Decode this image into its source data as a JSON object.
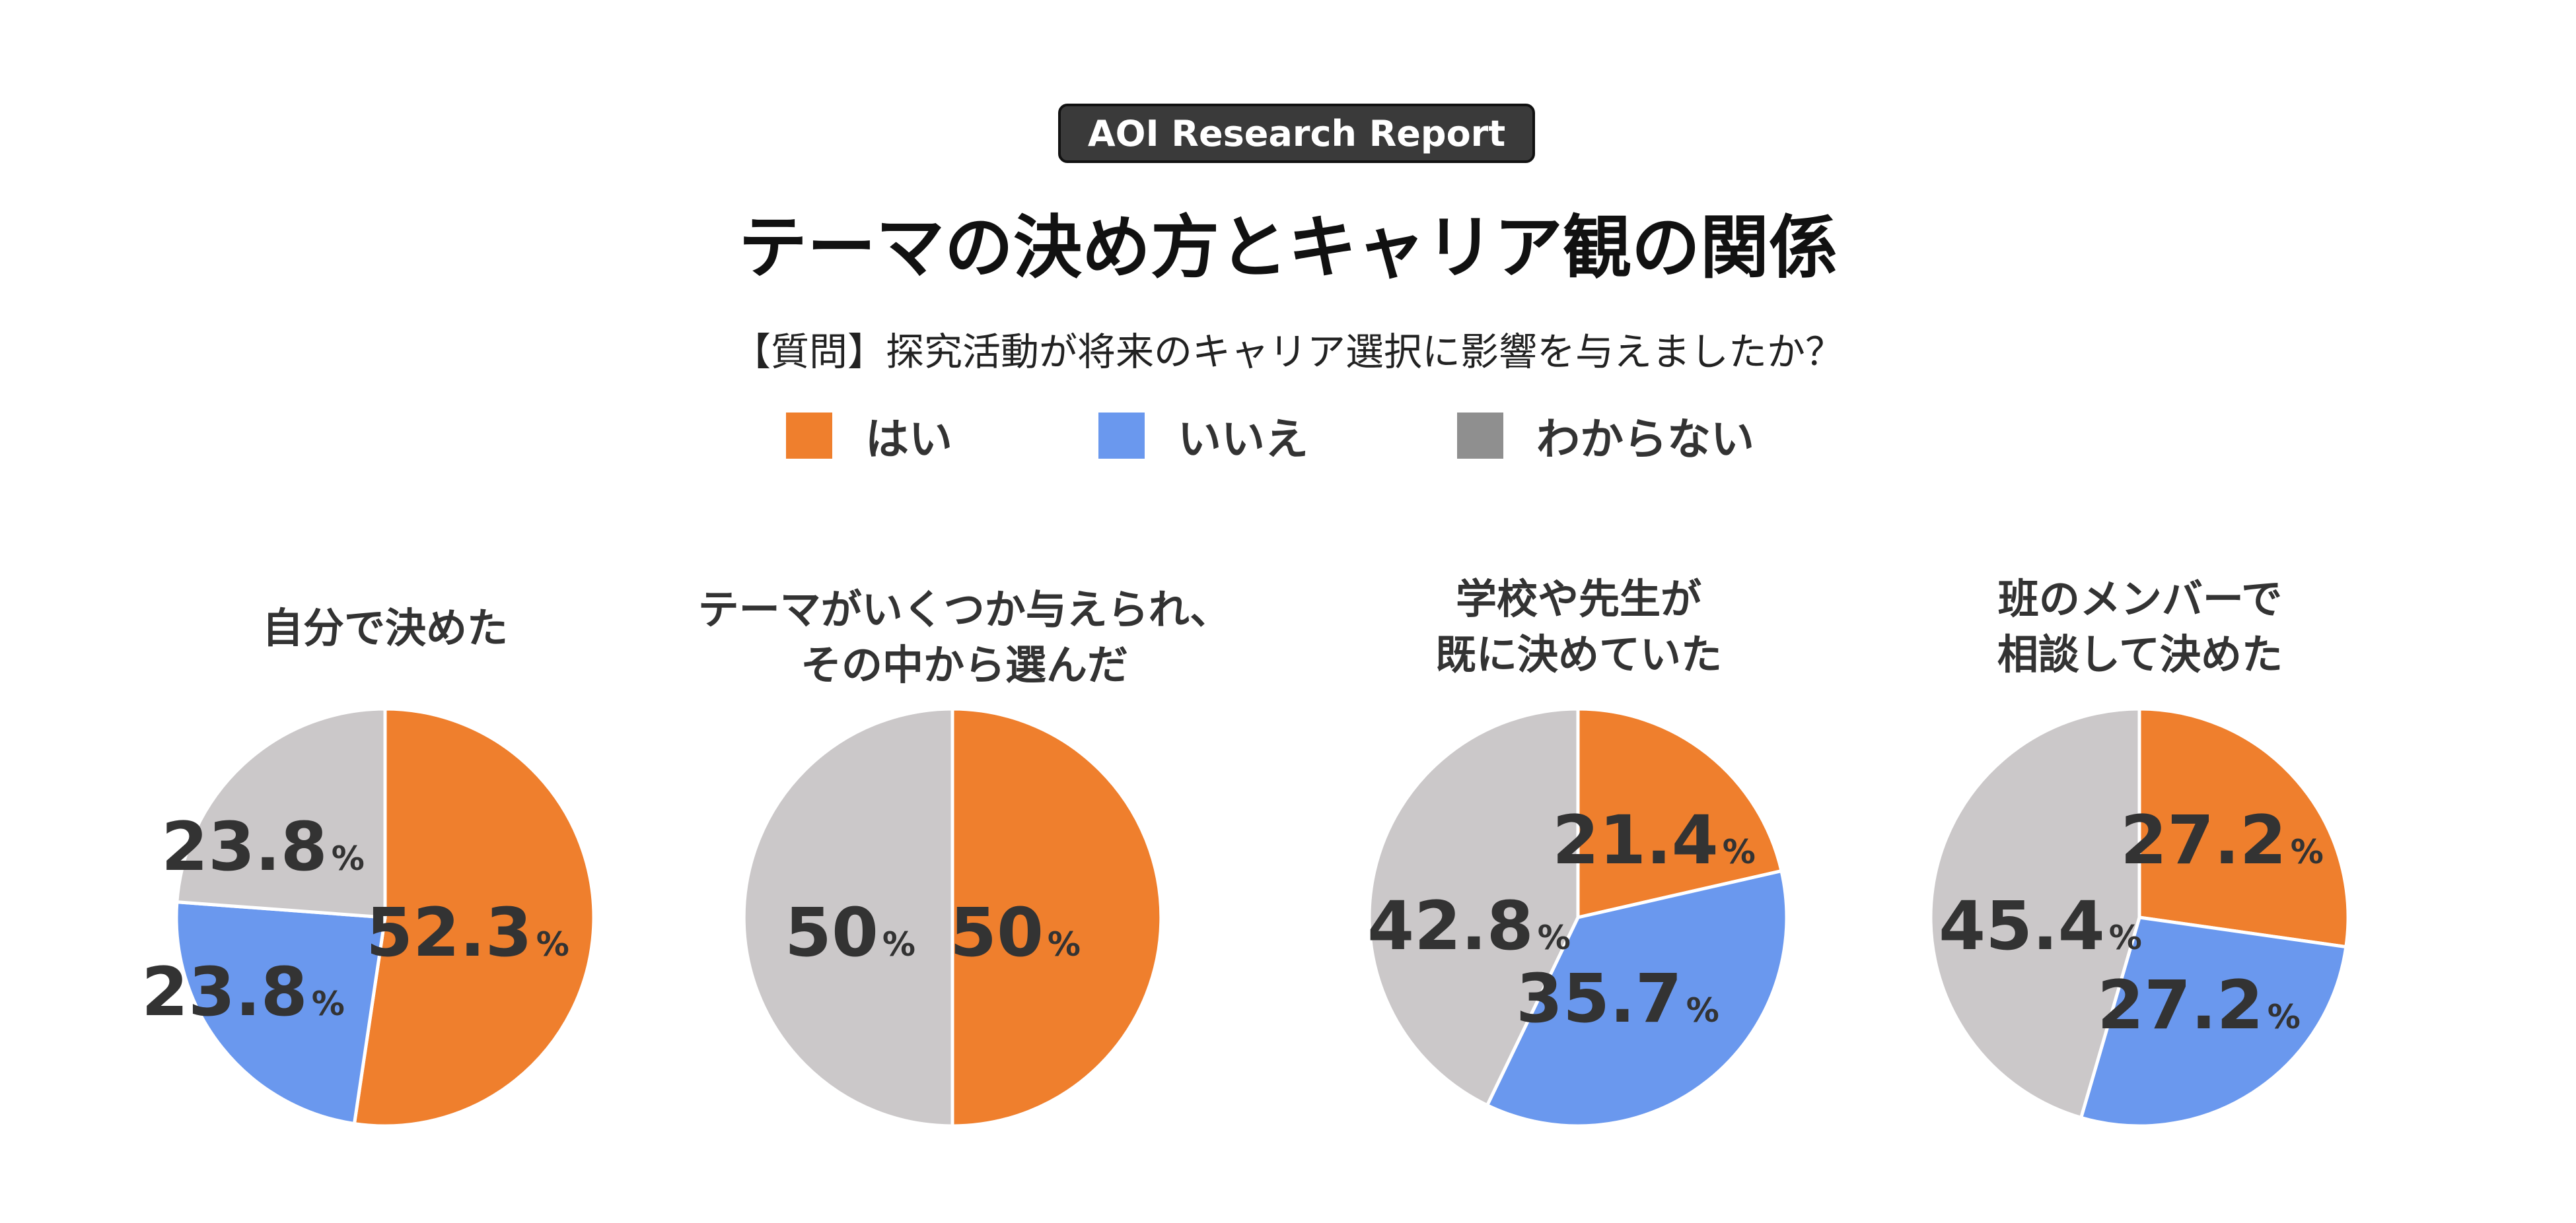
{
  "header": {
    "badge": "AOI Research Report",
    "title": "テーマの決め方とキャリア観の関係",
    "question": "【質問】探究活動が将来のキャリア選択に影響を与えましたか？"
  },
  "colors": {
    "yes": "#EF7F2D",
    "no": "#6A98EE",
    "unknown": "#CBC8C9",
    "unknown_legend": "#8F8F8F"
  },
  "legend": [
    {
      "label": "はい",
      "color": "#EF7F2D"
    },
    {
      "label": "いいえ",
      "color": "#6A98EE"
    },
    {
      "label": "わからない",
      "color": "#8F8F8F"
    }
  ],
  "chart_data": [
    {
      "type": "pie",
      "title_lines": [
        "自分で決めた"
      ],
      "categories": [
        "はい",
        "いいえ",
        "わからない"
      ],
      "values": [
        52.3,
        23.8,
        23.8
      ],
      "value_labels": [
        "52.3",
        "23.8",
        "23.8"
      ],
      "unit": "%"
    },
    {
      "type": "pie",
      "title_lines": [
        "テーマがいくつか与えられ、",
        "その中から選んだ"
      ],
      "categories": [
        "はい",
        "いいえ",
        "わからない"
      ],
      "values": [
        50,
        0,
        50
      ],
      "value_labels": [
        "50",
        "",
        "50"
      ],
      "unit": "%"
    },
    {
      "type": "pie",
      "title_lines": [
        "学校や先生が",
        "既に決めていた"
      ],
      "categories": [
        "はい",
        "いいえ",
        "わからない"
      ],
      "values": [
        21.4,
        35.7,
        42.8
      ],
      "value_labels": [
        "21.4",
        "35.7",
        "42.8"
      ],
      "unit": "%"
    },
    {
      "type": "pie",
      "title_lines": [
        "班のメンバーで",
        "相談して決めた"
      ],
      "categories": [
        "はい",
        "いいえ",
        "わからない"
      ],
      "values": [
        27.2,
        27.2,
        45.4
      ],
      "value_labels": [
        "27.2",
        "27.2",
        "45.4"
      ],
      "unit": "%"
    }
  ]
}
